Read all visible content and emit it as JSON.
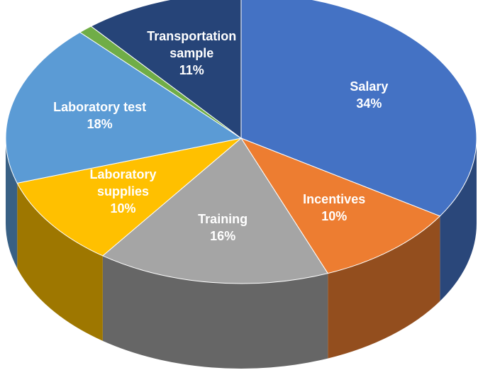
{
  "chart_data": {
    "type": "pie3d",
    "categories": [
      "Salary",
      "Incentives",
      "Training",
      "Laboratory supplies",
      "Laboratory test",
      null,
      "Transportation sample"
    ],
    "values": [
      34,
      10,
      16,
      10,
      18,
      1,
      11
    ],
    "value_labels": [
      "34%",
      "10%",
      "16%",
      "10%",
      "18%",
      null,
      "11%"
    ],
    "colors": [
      "#4472c4",
      "#ed7d31",
      "#a5a5a5",
      "#ffc000",
      "#5b9bd5",
      "#70ad47",
      "#264478"
    ]
  }
}
